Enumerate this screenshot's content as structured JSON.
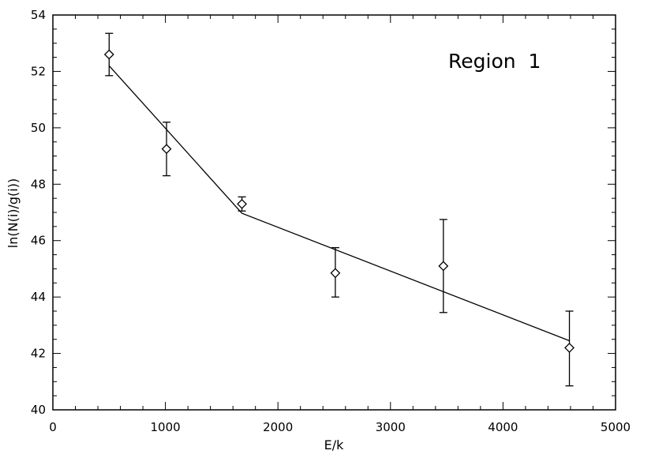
{
  "chart_data": {
    "type": "scatter",
    "xlabel": "E/k",
    "ylabel": "ln(N(i)/g(i))",
    "xlim": [
      0,
      5000
    ],
    "ylim": [
      40,
      54
    ],
    "grid": false,
    "x_ticks": [
      "0",
      "1000",
      "2000",
      "3000",
      "4000",
      "5000"
    ],
    "y_ticks": [
      "40",
      "42",
      "44",
      "46",
      "48",
      "50",
      "52",
      "54"
    ],
    "annotation": "Region  1",
    "points": [
      {
        "x": 500,
        "y": 52.6,
        "err_low": 51.85,
        "err_high": 53.35
      },
      {
        "x": 1010,
        "y": 49.25,
        "err_low": 48.3,
        "err_high": 50.2
      },
      {
        "x": 1680,
        "y": 47.3,
        "err_low": 47.05,
        "err_high": 47.55
      },
      {
        "x": 2510,
        "y": 44.85,
        "err_low": 44.0,
        "err_high": 45.75
      },
      {
        "x": 3470,
        "y": 45.1,
        "err_low": 43.45,
        "err_high": 46.75
      },
      {
        "x": 4590,
        "y": 42.2,
        "err_low": 40.85,
        "err_high": 43.5
      }
    ],
    "fit_line": [
      {
        "x": 500,
        "y": 52.2
      },
      {
        "x": 1680,
        "y": 46.97
      },
      {
        "x": 4590,
        "y": 42.45
      }
    ]
  }
}
